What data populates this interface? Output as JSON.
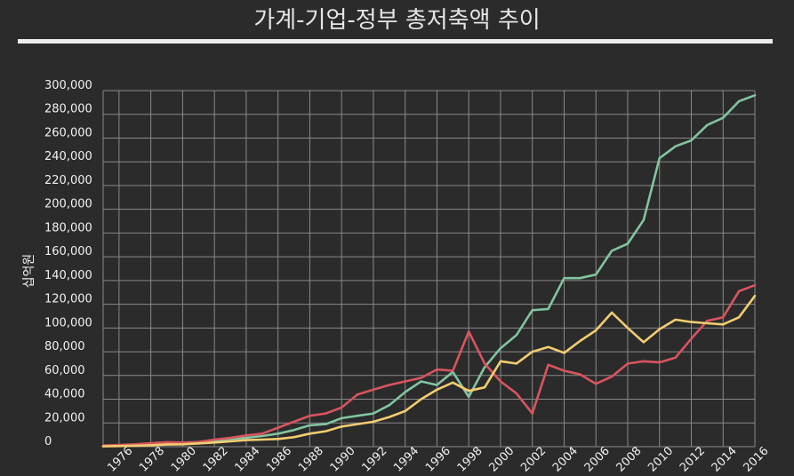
{
  "title": "가계-기업-정부 총저축액 추이",
  "chart_data": {
    "type": "line",
    "title": "가계-기업-정부 총저축액 추이",
    "xlabel": "",
    "ylabel": "십억원",
    "x": [
      1975,
      1976,
      1977,
      1978,
      1979,
      1980,
      1981,
      1982,
      1983,
      1984,
      1985,
      1986,
      1987,
      1988,
      1989,
      1990,
      1991,
      1992,
      1993,
      1994,
      1995,
      1996,
      1997,
      1998,
      1999,
      2000,
      2001,
      2002,
      2003,
      2004,
      2005,
      2006,
      2007,
      2008,
      2009,
      2010,
      2011,
      2012,
      2013,
      2014,
      2015,
      2016
    ],
    "x_tick_labels": [
      "1976",
      "1978",
      "1980",
      "1982",
      "1984",
      "1986",
      "1988",
      "1990",
      "1992",
      "1994",
      "1996",
      "1998",
      "2000",
      "2002",
      "2004",
      "2006",
      "2008",
      "2010",
      "2012",
      "2014",
      "2016"
    ],
    "x_tick_values": [
      1976,
      1978,
      1980,
      1982,
      1984,
      1986,
      1988,
      1990,
      1992,
      1994,
      1996,
      1998,
      2000,
      2002,
      2004,
      2006,
      2008,
      2010,
      2012,
      2014,
      2016
    ],
    "ylim": [
      0,
      300000
    ],
    "y_ticks": [
      0,
      20000,
      40000,
      60000,
      80000,
      100000,
      120000,
      140000,
      160000,
      180000,
      200000,
      220000,
      240000,
      260000,
      280000,
      300000
    ],
    "y_tick_labels": [
      "0",
      "20,000",
      "40,000",
      "60,000",
      "80,000",
      "100,000",
      "120,000",
      "140,000",
      "160,000",
      "180,000",
      "200,000",
      "220,000",
      "240,000",
      "260,000",
      "280,000",
      "300,000"
    ],
    "grid": true,
    "series": [
      {
        "color": "#82c4a0",
        "values": [
          500,
          800,
          1200,
          1800,
          2500,
          3000,
          3500,
          5000,
          6500,
          7500,
          9000,
          11000,
          14000,
          18000,
          19000,
          24000,
          26000,
          28000,
          35000,
          46000,
          55000,
          52000,
          63000,
          42000,
          67000,
          83000,
          94000,
          115000,
          116000,
          142000,
          142000,
          145000,
          165000,
          171000,
          191000,
          243000,
          253000,
          258000,
          271000,
          277000,
          291000,
          296000
        ]
      },
      {
        "color": "#d9545e",
        "values": [
          1000,
          1500,
          2000,
          3000,
          3800,
          3500,
          4000,
          6000,
          7500,
          9500,
          11000,
          16000,
          21000,
          26000,
          28000,
          33000,
          44000,
          48000,
          52000,
          55000,
          58000,
          65000,
          64000,
          97000,
          70000,
          55000,
          45000,
          28000,
          69000,
          64000,
          61000,
          53000,
          59000,
          70000,
          72000,
          71000,
          75000,
          91000,
          106000,
          109000,
          131000,
          136000
        ]
      },
      {
        "color": "#f2cd70",
        "values": [
          300,
          500,
          800,
          1200,
          1800,
          2000,
          2800,
          3500,
          4500,
          5500,
          6000,
          6500,
          8000,
          11000,
          13000,
          17000,
          19000,
          21000,
          25000,
          30000,
          40000,
          48000,
          54000,
          47000,
          50000,
          72000,
          70000,
          80000,
          84000,
          79000,
          89000,
          98000,
          113000,
          100000,
          88000,
          99000,
          107000,
          105000,
          104000,
          103000,
          109000,
          127000
        ]
      }
    ]
  }
}
